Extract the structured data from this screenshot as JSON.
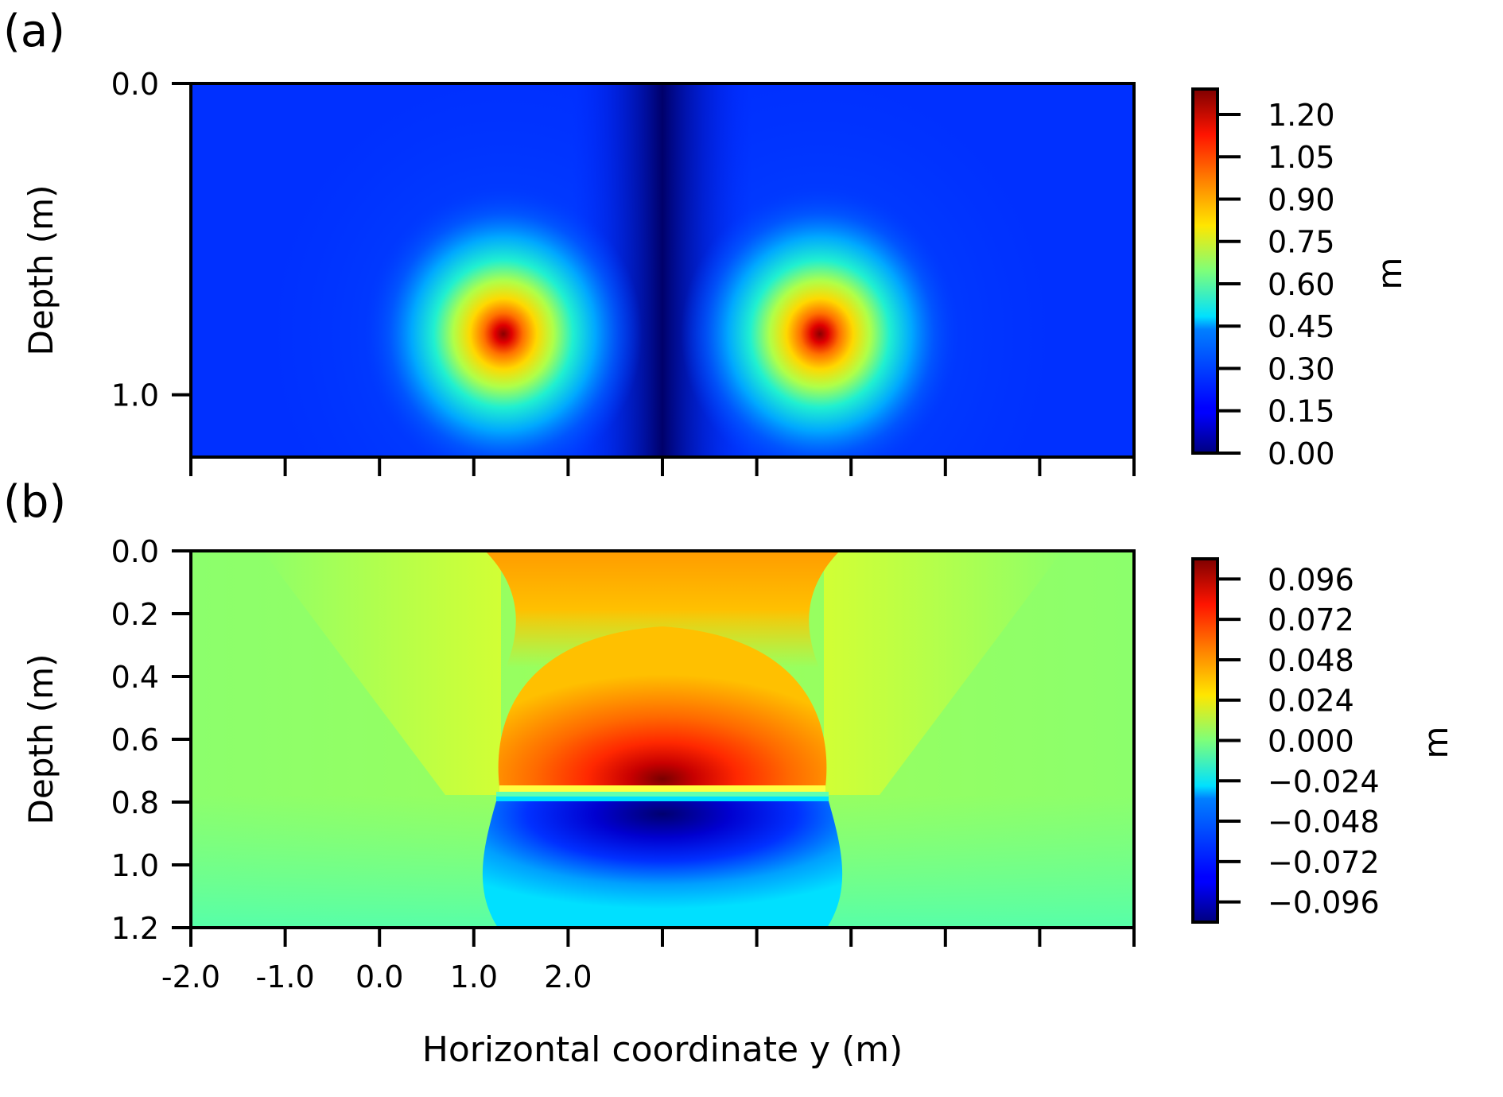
{
  "figure": {
    "x_label": "Horizontal coordinate y (m)"
  },
  "chart_data": [
    {
      "type": "heatmap",
      "panel_label": "(a)",
      "ylabel": "Depth (m)",
      "xlabel": "",
      "x_tick_labels": [],
      "x_tick_count": 11,
      "y_ticks": [
        {
          "value": 0.0,
          "label": "0.0"
        },
        {
          "value": 1.0,
          "label": "1.0"
        }
      ],
      "ylim": [
        0.0,
        1.2
      ],
      "y_inverted": true,
      "colormap": "jet",
      "colorbar": {
        "label": "m",
        "range": [
          0.0,
          1.29
        ],
        "ticks": [
          {
            "value": 0.0,
            "label": "0.00"
          },
          {
            "value": 0.15,
            "label": "0.15"
          },
          {
            "value": 0.3,
            "label": "0.30"
          },
          {
            "value": 0.45,
            "label": "0.45"
          },
          {
            "value": 0.6,
            "label": "0.60"
          },
          {
            "value": 0.75,
            "label": "0.75"
          },
          {
            "value": 0.9,
            "label": "0.90"
          },
          {
            "value": 1.05,
            "label": "1.05"
          },
          {
            "value": 1.2,
            "label": "1.20"
          }
        ]
      },
      "features": [
        {
          "kind": "hotspot",
          "x_fraction": 0.33,
          "depth": 0.8,
          "peak_value": 1.29
        },
        {
          "kind": "hotspot",
          "x_fraction": 0.665,
          "depth": 0.8,
          "peak_value": 1.29
        },
        {
          "kind": "minimum-band",
          "x_fraction": 0.5,
          "value": 0.0
        }
      ]
    },
    {
      "type": "heatmap",
      "panel_label": "(b)",
      "ylabel": "Depth (m)",
      "xlabel": "Horizontal coordinate y (m)",
      "x_tick_labels": [
        "-2.0",
        "-1.0",
        "0.0",
        "1.0",
        "2.0"
      ],
      "x_tick_count": 11,
      "y_ticks": [
        {
          "value": 0.0,
          "label": "0.0"
        },
        {
          "value": 0.2,
          "label": "0.2"
        },
        {
          "value": 0.4,
          "label": "0.4"
        },
        {
          "value": 0.6,
          "label": "0.6"
        },
        {
          "value": 0.8,
          "label": "0.8"
        },
        {
          "value": 1.0,
          "label": "1.0"
        },
        {
          "value": 1.2,
          "label": "1.2"
        }
      ],
      "ylim": [
        0.0,
        1.2
      ],
      "y_inverted": true,
      "colormap": "jet",
      "colorbar": {
        "label": "m",
        "range": [
          -0.108,
          0.108
        ],
        "ticks": [
          {
            "value": -0.096,
            "label": "−0.096"
          },
          {
            "value": -0.072,
            "label": "−0.072"
          },
          {
            "value": -0.048,
            "label": "−0.048"
          },
          {
            "value": -0.024,
            "label": "−0.024"
          },
          {
            "value": 0.0,
            "label": "0.000"
          },
          {
            "value": 0.024,
            "label": "0.024"
          },
          {
            "value": 0.048,
            "label": "0.048"
          },
          {
            "value": 0.072,
            "label": "0.072"
          },
          {
            "value": 0.096,
            "label": "0.096"
          }
        ]
      },
      "features": [
        {
          "kind": "positive-lobe",
          "x_fraction_range": [
            0.33,
            0.67
          ],
          "depth": 0.75,
          "peak_value": 0.108
        },
        {
          "kind": "negative-lobe",
          "x_fraction_range": [
            0.33,
            0.67
          ],
          "depth": 0.88,
          "peak_value": -0.108
        }
      ]
    }
  ]
}
